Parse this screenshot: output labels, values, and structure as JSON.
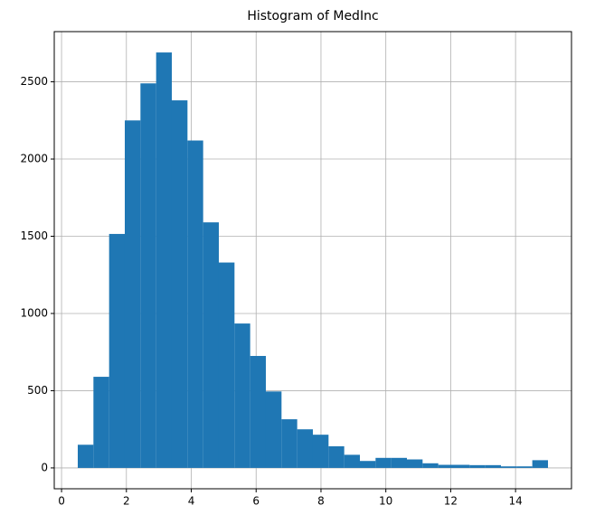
{
  "chart_data": {
    "type": "histogram",
    "title": "Histogram of MedInc",
    "bins": [
      0.4999,
      0.9832,
      1.4666,
      1.9499,
      2.4332,
      2.9166,
      3.3999,
      3.8833,
      4.3666,
      4.8499,
      5.3333,
      5.8166,
      6.2999,
      6.7833,
      7.2666,
      7.7499,
      8.2333,
      8.7166,
      9.1999,
      9.6833,
      10.1666,
      10.6499,
      11.1333,
      11.6166,
      12.0999,
      12.5833,
      13.0666,
      13.5499,
      14.0333,
      14.5166,
      15.0001
    ],
    "values": [
      150,
      590,
      1515,
      2250,
      2490,
      2690,
      2380,
      2120,
      1590,
      1330,
      935,
      725,
      495,
      315,
      250,
      215,
      140,
      85,
      45,
      65,
      65,
      55,
      30,
      20,
      20,
      18,
      18,
      10,
      10,
      50
    ],
    "color": "#1f77b4",
    "xlim": [
      -0.225,
      15.725
    ],
    "xticks": [
      0,
      2,
      4,
      6,
      8,
      10,
      12,
      14
    ],
    "ylim": [
      -135,
      2825
    ],
    "yticks": [
      0,
      500,
      1000,
      1500,
      2000,
      2500
    ],
    "grid": true
  }
}
